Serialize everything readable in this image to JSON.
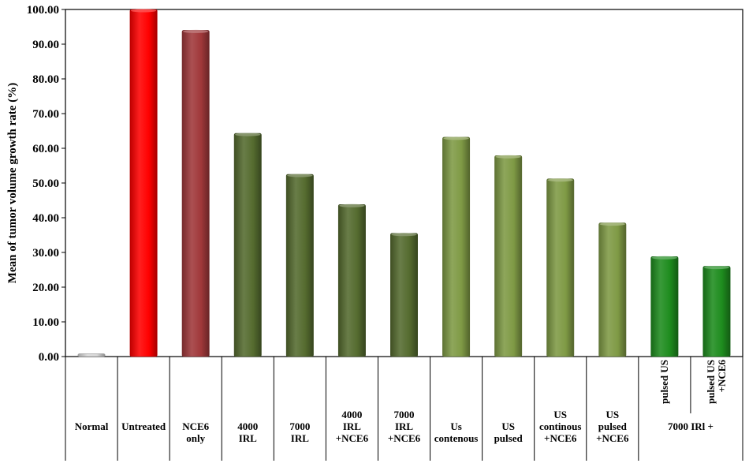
{
  "chart_data": {
    "type": "bar",
    "title": "",
    "xlabel": "",
    "ylabel": "Mean of tumor volume growth rate (%)",
    "ylim": [
      0,
      100
    ],
    "ytick_step": 10,
    "grid": false,
    "legend": "none",
    "categories": [
      [
        "Normal"
      ],
      [
        "Untreated"
      ],
      [
        "NCE6",
        "only"
      ],
      [
        "4000",
        "IRL"
      ],
      [
        "7000",
        "IRL"
      ],
      [
        "4000",
        "IRL",
        "+NCE6"
      ],
      [
        "7000",
        "IRL",
        "+NCE6"
      ],
      [
        "Us",
        "contenous"
      ],
      [
        "US",
        "pulsed"
      ],
      [
        "US",
        "continous",
        "+NCE6"
      ],
      [
        "US",
        "pulsed",
        "+NCE6"
      ],
      [
        "pulsed US"
      ],
      [
        "pulsed US",
        "+NCE6"
      ]
    ],
    "group_label": "7000 IRl +",
    "values": [
      0.8,
      100,
      94,
      64.3,
      52.5,
      43.8,
      35.5,
      63.2,
      57.9,
      51.2,
      38.5,
      28.8,
      26
    ],
    "colors": [
      "#d9d9d9",
      "#ff0000",
      "#a0383a",
      "#556b2f",
      "#556b2f",
      "#556b2f",
      "#556b2f",
      "#7f9a45",
      "#7f9a45",
      "#7f9a45",
      "#7f9a45",
      "#1e8c1e",
      "#1e8c1e"
    ]
  }
}
